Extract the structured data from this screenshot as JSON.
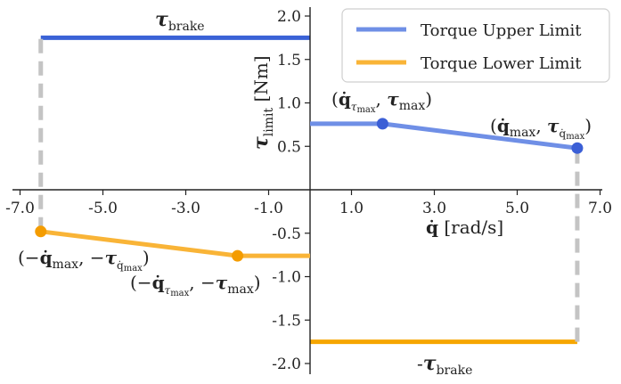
{
  "chart_data": {
    "type": "line",
    "xlabel": "q̇ [rad/s]",
    "ylabel": "τlimit [Nm]",
    "xlim": [
      -7.3,
      7.1
    ],
    "ylim": [
      -2.1,
      2.1
    ],
    "x_ticks": [
      -7.0,
      -5.0,
      -3.0,
      -1.0,
      1.0,
      3.0,
      5.0,
      7.0
    ],
    "x_tick_labels": [
      "-7.0",
      "-5.0",
      "-3.0",
      "-1.0",
      "1.0",
      "3.0",
      "5.0",
      "7.0"
    ],
    "y_ticks": [
      2.0,
      1.5,
      1.0,
      0.5,
      -0.5,
      -1.0,
      -1.5,
      -2.0
    ],
    "y_tick_labels": [
      "2.0",
      "1.5",
      "1.0",
      "0.5",
      "-0.5",
      "-1.0",
      "-1.5",
      "-2.0"
    ],
    "grid": false,
    "legend_position": "top-right",
    "series": [
      {
        "name": "Torque Upper Limit",
        "color": "#6f8fe6",
        "x": [
          0.0,
          1.75,
          6.45
        ],
        "y": [
          0.76,
          0.76,
          0.48
        ]
      },
      {
        "name": "Torque Lower Limit",
        "color": "#f9b437",
        "x": [
          -6.5,
          -1.75,
          0.0
        ],
        "y": [
          -0.48,
          -0.76,
          -0.76
        ]
      }
    ],
    "brake": {
      "value": 1.75,
      "upper": {
        "x": [
          -6.5,
          0.0
        ],
        "color": "#3a62d6"
      },
      "lower": {
        "x": [
          0.0,
          6.45
        ],
        "color": "#f6a600"
      },
      "upper_label": "τbrake",
      "lower_label": "-τbrake"
    },
    "dashed_verticals": [
      {
        "x": -6.5,
        "y": [
          -0.48,
          1.75
        ]
      },
      {
        "x": 6.45,
        "y": [
          -1.75,
          0.48
        ]
      }
    ],
    "points": [
      {
        "x": 1.75,
        "y": 0.76,
        "color": "#3b5fd6",
        "label": "(q̇τmax, τmax)"
      },
      {
        "x": 6.45,
        "y": 0.48,
        "color": "#3b5fd6",
        "label": "(q̇max, τq̇max)"
      },
      {
        "x": -6.5,
        "y": -0.48,
        "color": "#f49c00",
        "label": "(−q̇max, −τq̇max)"
      },
      {
        "x": -1.75,
        "y": -0.76,
        "color": "#f49c00",
        "label": "(−q̇τmax, −τmax)"
      }
    ]
  }
}
